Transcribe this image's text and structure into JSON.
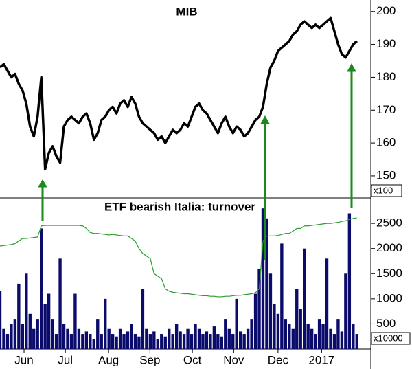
{
  "chart_data": [
    {
      "type": "line",
      "title": "MIB",
      "y_unit": "x100",
      "color": "#000000",
      "values": [
        183,
        184,
        182,
        180,
        181,
        178,
        176,
        172,
        165,
        162,
        168,
        180,
        152,
        157,
        159,
        156,
        154,
        165,
        167,
        168,
        167,
        166,
        168,
        169,
        166,
        161,
        163,
        167,
        168,
        170,
        171,
        169,
        172,
        173,
        171,
        174,
        172,
        168,
        166,
        165,
        164,
        163,
        161,
        162,
        160,
        162,
        164,
        163,
        164,
        166,
        165,
        168,
        171,
        172,
        170,
        169,
        167,
        165,
        163,
        166,
        168,
        165,
        163,
        165,
        164,
        162,
        163,
        165,
        167,
        168,
        171,
        178,
        183,
        185,
        188,
        189,
        190,
        191,
        193,
        194,
        196,
        197,
        196,
        195,
        196,
        195,
        196,
        197,
        198,
        194,
        190,
        187,
        186,
        188,
        190,
        191
      ],
      "xlim": [
        0,
        96.5
      ],
      "ylim": [
        143.3,
        203.5
      ],
      "yticks": [
        150,
        160,
        170,
        180,
        190,
        200
      ]
    },
    {
      "type": "bar",
      "title": "ETF bearish Italia: turnover",
      "y_unit": "x10000",
      "series": [
        {
          "type": "bar",
          "color": "#0b0b6b",
          "values": [
            1150,
            400,
            300,
            500,
            600,
            1300,
            500,
            1500,
            700,
            400,
            600,
            2400,
            900,
            1100,
            600,
            300,
            1800,
            500,
            400,
            300,
            1100,
            400,
            300,
            350,
            300,
            200,
            600,
            300,
            1000,
            400,
            300,
            250,
            400,
            300,
            350,
            500,
            300,
            250,
            1200,
            400,
            300,
            350,
            200,
            300,
            250,
            400,
            300,
            500,
            350,
            300,
            400,
            300,
            500,
            400,
            300,
            350,
            300,
            450,
            300,
            250,
            600,
            400,
            300,
            1000,
            350,
            300,
            400,
            600,
            1100,
            1600,
            2800,
            2600,
            1500,
            900,
            700,
            2100,
            600,
            500,
            400,
            1200,
            800,
            2000,
            500,
            400,
            300,
            600,
            500,
            1800,
            400,
            300,
            600,
            350,
            1500,
            2700,
            500,
            300
          ]
        },
        {
          "type": "line",
          "color": "#2b9b2b",
          "values": [
            2050,
            2060,
            2070,
            2080,
            2100,
            2150,
            2200,
            2200,
            2210,
            2220,
            2230,
            2450,
            2460,
            2460,
            2460,
            2460,
            2460,
            2460,
            2460,
            2460,
            2460,
            2460,
            2450,
            2400,
            2320,
            2300,
            2300,
            2290,
            2280,
            2270,
            2280,
            2270,
            2260,
            2250,
            2250,
            2200,
            2150,
            2000,
            1900,
            1850,
            1800,
            1500,
            1450,
            1400,
            1200,
            1150,
            1130,
            1120,
            1110,
            1100,
            1100,
            1090,
            1080,
            1070,
            1060,
            1060,
            1050,
            1050,
            1040,
            1040,
            1050,
            1050,
            1060,
            1070,
            1070,
            1080,
            1090,
            1100,
            1120,
            1200,
            2150,
            2250,
            2250,
            2250,
            2260,
            2280,
            2300,
            2300,
            2350,
            2400,
            2400,
            2450,
            2450,
            2460,
            2470,
            2480,
            2490,
            2500,
            2500,
            2510,
            2520,
            2540,
            2550,
            2580,
            2600,
            2610
          ]
        }
      ],
      "xlim": [
        0,
        96.5
      ],
      "ylim": [
        0,
        2980
      ],
      "yticks": [
        500,
        1000,
        1500,
        2000,
        2500
      ],
      "xticks": [
        {
          "value": 6.4,
          "label": "Jun"
        },
        {
          "value": 17.4,
          "label": "Jul"
        },
        {
          "value": 28.9,
          "label": "Aug"
        },
        {
          "value": 39.9,
          "label": "Sep"
        },
        {
          "value": 51.2,
          "label": "Oct"
        },
        {
          "value": 62.2,
          "label": "Nov"
        },
        {
          "value": 74,
          "label": "Dec"
        },
        {
          "value": 85.6,
          "label": "2017"
        }
      ]
    }
  ]
}
